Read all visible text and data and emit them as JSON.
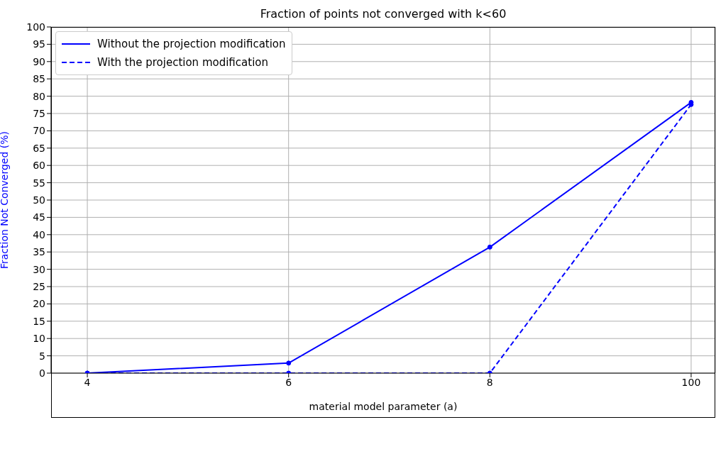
{
  "chart_data": {
    "type": "line",
    "title": "Fraction of points not converged with k<60",
    "xlabel": "material model parameter (a)",
    "ylabel": "Fraction Not Converged (%)",
    "categories": [
      "4",
      "6",
      "8",
      "100"
    ],
    "ylim": [
      0,
      100
    ],
    "yticks": [
      0,
      5,
      10,
      15,
      20,
      25,
      30,
      35,
      40,
      45,
      50,
      55,
      60,
      65,
      70,
      75,
      80,
      85,
      90,
      95,
      100
    ],
    "grid": true,
    "legend": "top left",
    "marker": "circle",
    "series": [
      {
        "name": "Without the projection modification",
        "color": "#0000ff",
        "values": [
          0,
          2.9,
          36.4,
          78.2
        ],
        "line_style": "solid"
      },
      {
        "name": "With the projection modification",
        "color": "#0000ff",
        "values": [
          0,
          0,
          0,
          77.6
        ],
        "line_style": "dashed"
      }
    ]
  }
}
